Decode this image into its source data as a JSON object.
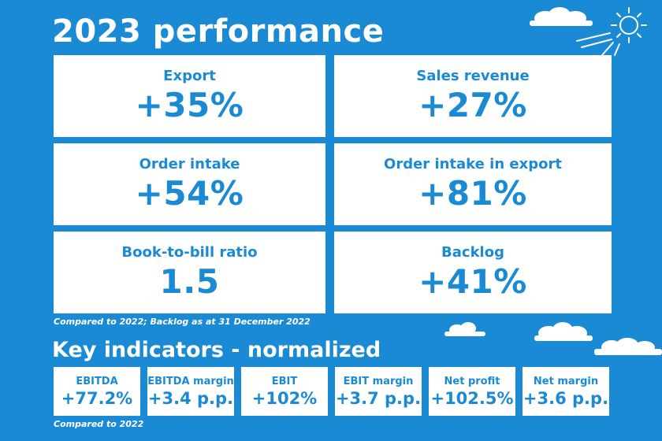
{
  "title": "2023 performance",
  "metrics": [
    {
      "label": "Export",
      "value": "+35%"
    },
    {
      "label": "Sales revenue",
      "value": "+27%"
    },
    {
      "label": "Order intake",
      "value": "+54%"
    },
    {
      "label": "Order intake in export",
      "value": "+81%"
    },
    {
      "label": "Book-to-bill ratio",
      "value": "1.5"
    },
    {
      "label": "Backlog",
      "value": "+41%"
    }
  ],
  "metrics_note": "Compared to 2022; Backlog as at 31 December 2022",
  "indicators_title": "Key indicators - normalized",
  "indicators": [
    {
      "label": "EBITDA",
      "value": "+77.2%"
    },
    {
      "label": "EBITDA margin",
      "value": "+3.4 p.p."
    },
    {
      "label": "EBIT",
      "value": "+102%"
    },
    {
      "label": "EBIT margin",
      "value": "+3.7 p.p."
    },
    {
      "label": "Net profit",
      "value": "+102.5%"
    },
    {
      "label": "Net margin",
      "value": "+3.6 p.p."
    }
  ],
  "indicators_note": "Compared to 2022",
  "colors": {
    "background": "#1a8ad4",
    "card": "#ffffff",
    "accent": "#1a8ad4"
  },
  "decorations": [
    "cloud-icon",
    "sun-icon"
  ]
}
